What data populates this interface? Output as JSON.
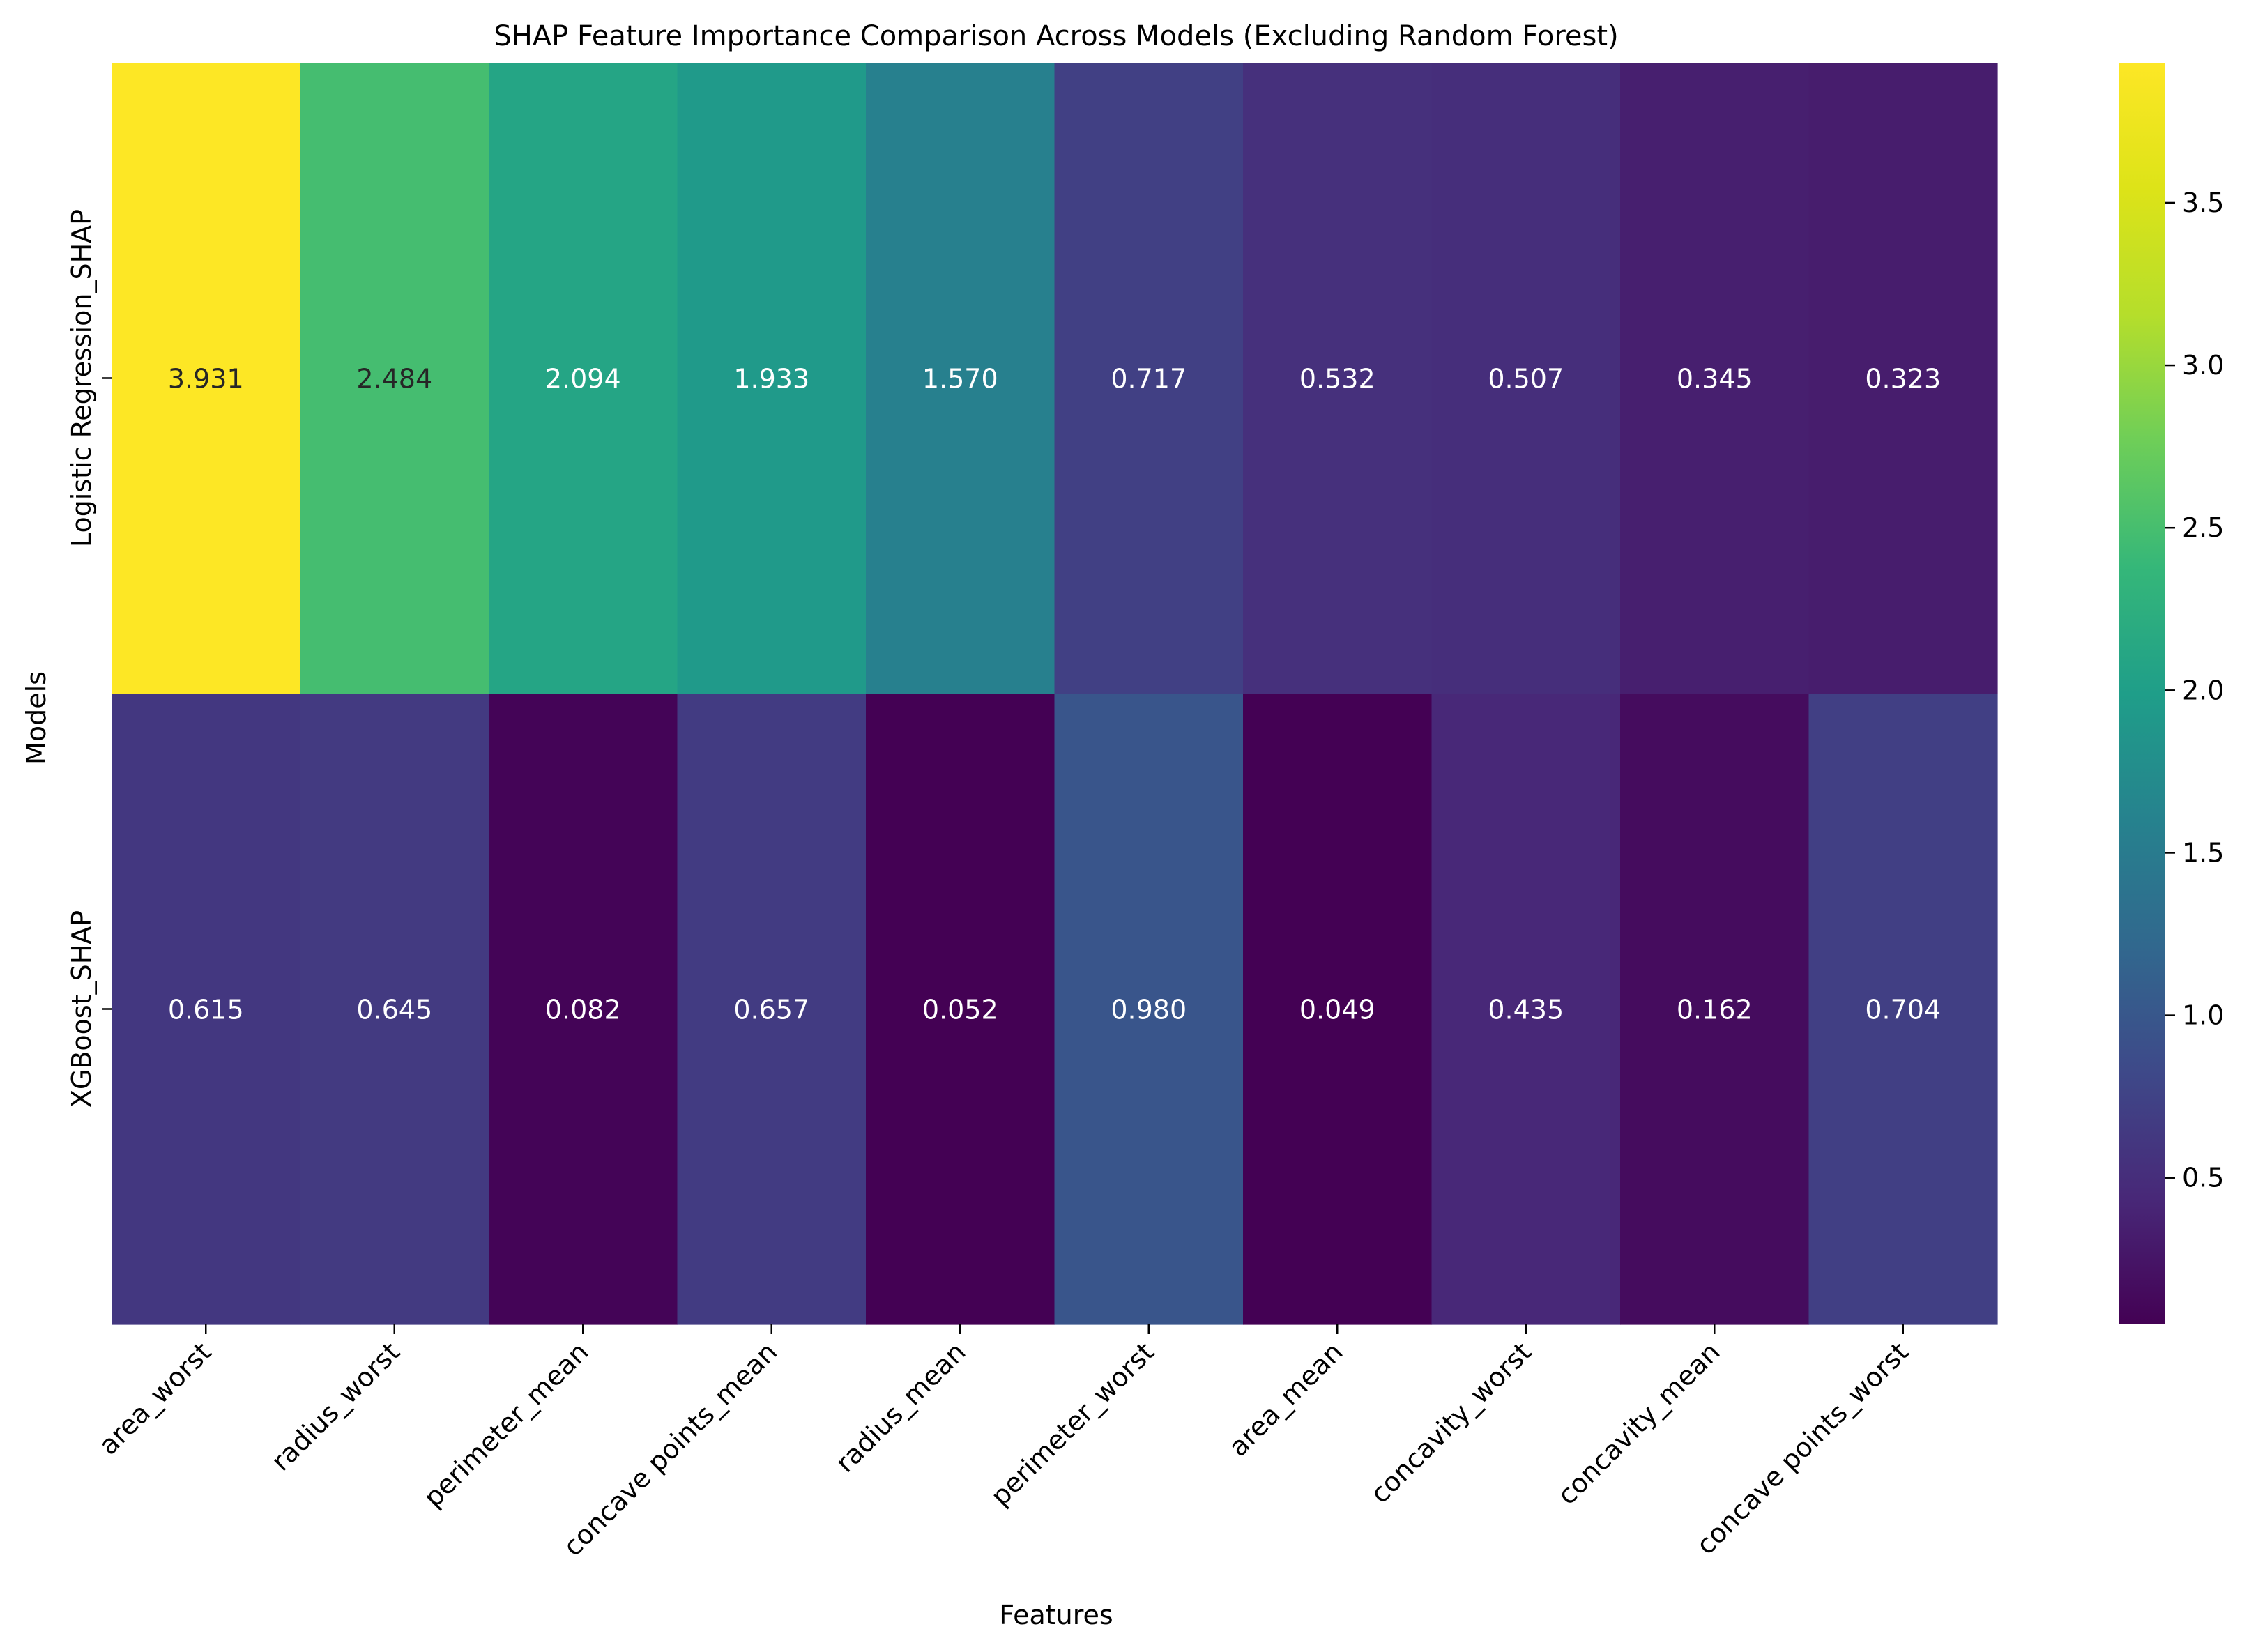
{
  "chart_data": {
    "type": "heatmap",
    "title": "SHAP Feature Importance Comparison Across Models (Excluding Random Forest)",
    "xlabel": "Features",
    "ylabel": "Models",
    "columns": [
      "area_worst",
      "radius_worst",
      "perimeter_mean",
      "concave points_mean",
      "radius_mean",
      "perimeter_worst",
      "area_mean",
      "concavity_worst",
      "concavity_mean",
      "concave points_worst"
    ],
    "rows": [
      "Logistic Regression_SHAP",
      "XGBoost_SHAP"
    ],
    "values": [
      [
        3.931,
        2.484,
        2.094,
        1.933,
        1.57,
        0.717,
        0.532,
        0.507,
        0.345,
        0.323
      ],
      [
        0.615,
        0.645,
        0.082,
        0.657,
        0.052,
        0.98,
        0.049,
        0.435,
        0.162,
        0.704
      ]
    ],
    "value_labels": [
      [
        "3.931",
        "2.484",
        "2.094",
        "1.933",
        "1.570",
        "0.717",
        "0.532",
        "0.507",
        "0.345",
        "0.323"
      ],
      [
        "0.615",
        "0.645",
        "0.082",
        "0.657",
        "0.052",
        "0.980",
        "0.049",
        "0.435",
        "0.162",
        "0.704"
      ]
    ],
    "colormap": "viridis",
    "color_range": [
      0.049,
      3.931
    ],
    "colorbar_ticks": [
      0.5,
      1.0,
      1.5,
      2.0,
      2.5,
      3.0,
      3.5
    ],
    "colorbar_tick_labels": [
      "0.5",
      "1.0",
      "1.5",
      "2.0",
      "2.5",
      "3.0",
      "3.5"
    ],
    "grid": false,
    "legend": "colorbar-right"
  }
}
